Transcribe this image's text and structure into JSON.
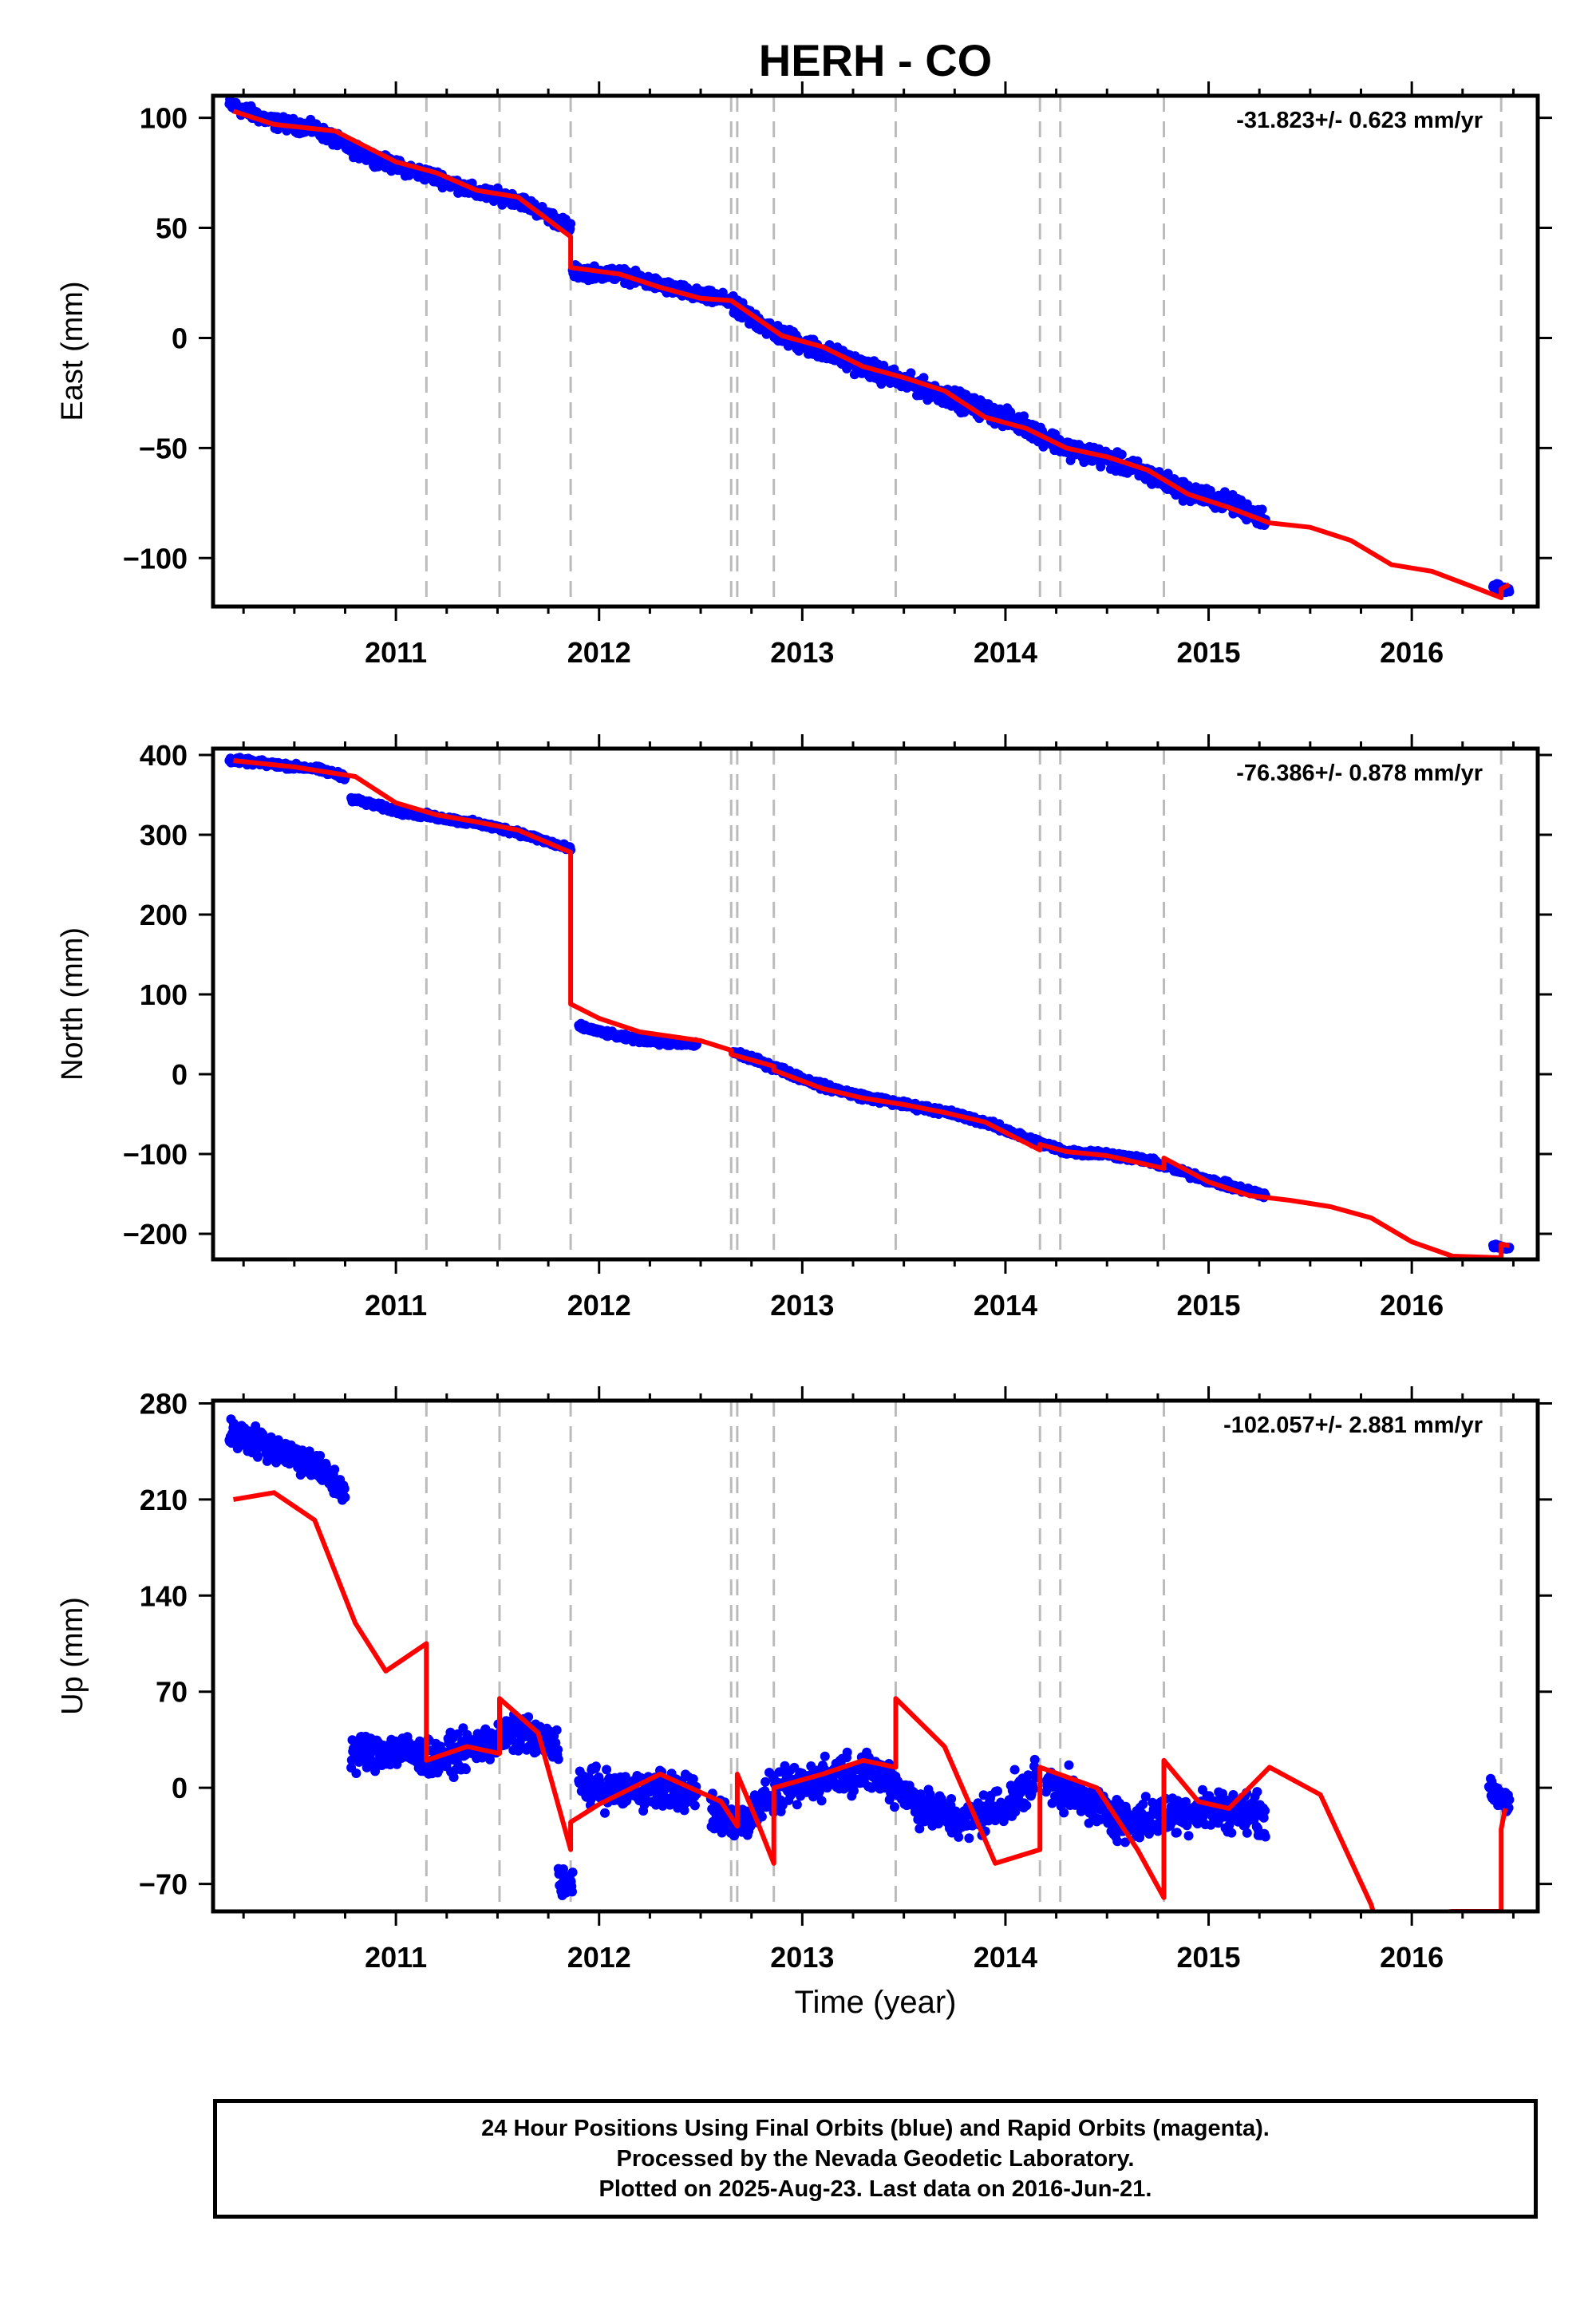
{
  "title": "HERH - CO",
  "x_axis": {
    "label": "Time (year)",
    "range": [
      2010.1,
      2016.62
    ],
    "ticks": [
      2011,
      2012,
      2013,
      2014,
      2015,
      2016
    ],
    "tick_labels": [
      "2011",
      "2012",
      "2013",
      "2014",
      "2015",
      "2016"
    ],
    "minor_step": 0.25
  },
  "event_lines": [
    2011.15,
    2011.51,
    2011.86,
    2012.65,
    2012.68,
    2012.86,
    2013.46,
    2014.17,
    2014.27,
    2014.78,
    2016.44
  ],
  "colors": {
    "data_points": "#0000ff",
    "model_line": "#ff0000",
    "event_lines": "#bbbbbb",
    "frame": "#000000"
  },
  "chart_data": [
    {
      "type": "scatter",
      "component": "East",
      "ylabel": "East (mm)",
      "ylim": [
        -122,
        110
      ],
      "yticks": [
        100,
        50,
        0,
        -50,
        -100
      ],
      "ytick_labels": [
        "100",
        "50",
        "0",
        "−50",
        "−100"
      ],
      "rate_label": "-31.823+/- 0.623 mm/yr",
      "observed_segments": [
        {
          "x": [
            2010.18,
            2010.4,
            2010.6,
            2010.8,
            2011.0,
            2011.2,
            2011.4,
            2011.6,
            2011.86
          ],
          "y": [
            106,
            98,
            95,
            85,
            78,
            73,
            66,
            63,
            50
          ],
          "scatter": 2.5
        },
        {
          "x": [
            2011.87,
            2012.1,
            2012.3,
            2012.5,
            2012.65
          ],
          "y": [
            30,
            29,
            24,
            19,
            17
          ],
          "scatter": 2.5
        },
        {
          "x": [
            2012.66,
            2012.9,
            2013.1,
            2013.3,
            2013.5,
            2013.7,
            2013.9,
            2014.1,
            2014.3,
            2014.5,
            2014.7,
            2014.9,
            2015.1,
            2015.28
          ],
          "y": [
            14,
            1,
            -6,
            -13,
            -20,
            -26,
            -33,
            -40,
            -50,
            -55,
            -62,
            -70,
            -75,
            -82
          ],
          "scatter": 3.5
        },
        {
          "x": [
            2016.4,
            2016.48
          ],
          "y": [
            -113,
            -115
          ],
          "scatter": 2.0
        }
      ],
      "model": {
        "x": [
          2010.2,
          2010.4,
          2010.7,
          2011.0,
          2011.2,
          2011.4,
          2011.6,
          2011.86,
          2011.86,
          2012.1,
          2012.3,
          2012.5,
          2012.65,
          2012.9,
          2013.1,
          2013.3,
          2013.5,
          2013.7,
          2013.9,
          2014.1,
          2014.3,
          2014.5,
          2014.7,
          2014.9,
          2015.1,
          2015.3,
          2015.5,
          2015.7,
          2015.9,
          2016.1,
          2016.3,
          2016.44,
          2016.44,
          2016.48
        ],
        "y": [
          103,
          97,
          94,
          80,
          75,
          67,
          64,
          46,
          32,
          29,
          23,
          18,
          17,
          1,
          -4,
          -13,
          -18,
          -24,
          -36,
          -41,
          -50,
          -54,
          -60,
          -71,
          -77,
          -84,
          -86,
          -92,
          -103,
          -106,
          -113,
          -118,
          -114,
          -112
        ]
      }
    },
    {
      "type": "scatter",
      "component": "North",
      "ylabel": "North (mm)",
      "ylim": [
        -232,
        408
      ],
      "yticks": [
        400,
        300,
        200,
        100,
        0,
        -100,
        -200
      ],
      "ytick_labels": [
        "400",
        "300",
        "200",
        "100",
        "0",
        "−100",
        "−200"
      ],
      "rate_label": "-76.386+/- 0.878 mm/yr",
      "observed_segments": [
        {
          "x": [
            2010.18,
            2010.4,
            2010.6,
            2010.75
          ],
          "y": [
            394,
            388,
            383,
            373
          ],
          "scatter": 3.0
        },
        {
          "x": [
            2010.78,
            2011.0,
            2011.2,
            2011.4,
            2011.6,
            2011.86
          ],
          "y": [
            345,
            330,
            322,
            314,
            303,
            282
          ],
          "scatter": 3.0
        },
        {
          "x": [
            2011.9,
            2012.1,
            2012.3,
            2012.48
          ],
          "y": [
            60,
            47,
            40,
            37
          ],
          "scatter": 3.0
        },
        {
          "x": [
            2012.66,
            2012.9,
            2013.1,
            2013.3,
            2013.5,
            2013.7,
            2013.9,
            2014.1,
            2014.3,
            2014.5,
            2014.7,
            2014.9,
            2015.1,
            2015.28
          ],
          "y": [
            28,
            5,
            -15,
            -28,
            -38,
            -47,
            -60,
            -80,
            -97,
            -100,
            -108,
            -125,
            -140,
            -152
          ],
          "scatter": 3.5
        },
        {
          "x": [
            2016.4,
            2016.48
          ],
          "y": [
            -215,
            -218
          ],
          "scatter": 2.0
        }
      ],
      "model": {
        "x": [
          2010.2,
          2010.5,
          2010.8,
          2011.0,
          2011.2,
          2011.4,
          2011.6,
          2011.86,
          2011.86,
          2012.0,
          2012.2,
          2012.5,
          2012.65,
          2012.65,
          2012.86,
          2012.86,
          2013.1,
          2013.3,
          2013.5,
          2013.7,
          2013.9,
          2014.17,
          2014.17,
          2014.3,
          2014.5,
          2014.78,
          2014.78,
          2015.0,
          2015.2,
          2015.4,
          2015.6,
          2015.8,
          2016.0,
          2016.2,
          2016.44,
          2016.44,
          2016.48
        ],
        "y": [
          393,
          385,
          373,
          340,
          325,
          316,
          306,
          278,
          88,
          70,
          53,
          42,
          30,
          25,
          10,
          5,
          -18,
          -30,
          -38,
          -48,
          -60,
          -95,
          -88,
          -97,
          -102,
          -118,
          -105,
          -135,
          -152,
          -158,
          -166,
          -180,
          -210,
          -228,
          -230,
          -213,
          -215
        ]
      }
    },
    {
      "type": "scatter",
      "component": "Up",
      "ylabel": "Up (mm)",
      "ylim": [
        -90,
        282
      ],
      "yticks": [
        280,
        210,
        140,
        70,
        0,
        -70
      ],
      "ytick_labels": [
        "280",
        "210",
        "140",
        "70",
        "0",
        "−70"
      ],
      "rate_label": "-102.057+/- 2.881 mm/yr",
      "observed_segments": [
        {
          "x": [
            2010.18,
            2010.4,
            2010.6,
            2010.75
          ],
          "y": [
            258,
            248,
            235,
            215
          ],
          "scatter": 9
        },
        {
          "x": [
            2010.78,
            2011.0,
            2011.2,
            2011.4,
            2011.6,
            2011.8
          ],
          "y": [
            25,
            28,
            20,
            30,
            40,
            30
          ],
          "scatter": 11
        },
        {
          "x": [
            2011.8,
            2011.87
          ],
          "y": [
            -65,
            -72
          ],
          "scatter": 9
        },
        {
          "x": [
            2011.9,
            2012.1,
            2012.3,
            2012.48
          ],
          "y": [
            3,
            -3,
            0,
            -5
          ],
          "scatter": 11
        },
        {
          "x": [
            2012.55,
            2012.7,
            2012.85,
            2013.0,
            2013.2,
            2013.4,
            2013.6,
            2013.8,
            2014.0,
            2014.15
          ],
          "y": [
            -18,
            -25,
            -5,
            2,
            12,
            10,
            -15,
            -25,
            -12,
            5
          ],
          "scatter": 12
        },
        {
          "x": [
            2014.2,
            2014.4,
            2014.6,
            2014.8,
            2015.0,
            2015.28
          ],
          "y": [
            5,
            -10,
            -25,
            -20,
            -15,
            -20
          ],
          "scatter": 12
        },
        {
          "x": [
            2016.38,
            2016.48
          ],
          "y": [
            -2,
            -10
          ],
          "scatter": 7
        }
      ],
      "model": {
        "x": [
          2010.2,
          2010.4,
          2010.6,
          2010.8,
          2010.95,
          2011.15,
          2011.15,
          2011.35,
          2011.51,
          2011.51,
          2011.7,
          2011.86,
          2011.86,
          2012.0,
          2012.3,
          2012.6,
          2012.68,
          2012.68,
          2012.78,
          2012.86,
          2012.86,
          2013.1,
          2013.3,
          2013.46,
          2013.46,
          2013.7,
          2013.95,
          2014.17,
          2014.17,
          2014.45,
          2014.65,
          2014.78,
          2014.78,
          2014.95,
          2015.1,
          2015.3,
          2015.55,
          2015.8,
          2015.82,
          2016.2,
          2016.44,
          2016.44,
          2016.46
        ],
        "y": [
          210,
          215,
          195,
          120,
          85,
          105,
          20,
          30,
          25,
          65,
          40,
          -45,
          -25,
          -12,
          10,
          -10,
          -28,
          10,
          -25,
          -55,
          0,
          10,
          20,
          15,
          65,
          30,
          -55,
          -45,
          15,
          0,
          -45,
          -80,
          20,
          -10,
          -15,
          15,
          -5,
          -85,
          -95,
          -90,
          -90,
          -30,
          -15
        ]
      }
    }
  ],
  "footer": {
    "line1": "24 Hour Positions Using Final Orbits (blue) and Rapid Orbits (magenta).",
    "line2": "Processed by the Nevada Geodetic Laboratory.",
    "line3": "Plotted on 2025-Aug-23. Last data on 2016-Jun-21."
  }
}
